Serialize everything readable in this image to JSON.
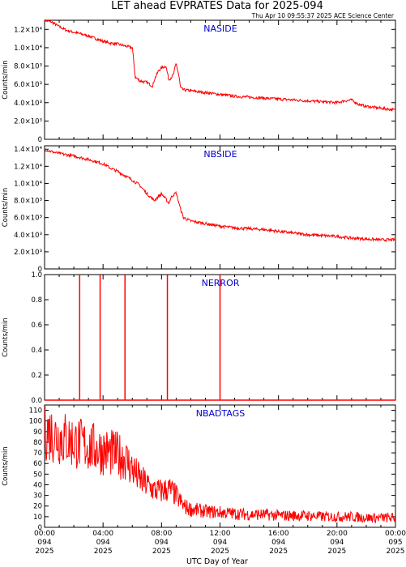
{
  "header": {
    "title": "LET ahead EVPRATES Data for 2025-094",
    "timestamp": "Thu Apr 10 09:55:37 2025 ACE Science Center"
  },
  "xaxis": {
    "label": "UTC Day of Year",
    "ticks": [
      {
        "hours": 0,
        "time": "00:00",
        "doy": "094",
        "year": "2025"
      },
      {
        "hours": 4,
        "time": "04:00",
        "doy": "094",
        "year": "2025"
      },
      {
        "hours": 8,
        "time": "08:00",
        "doy": "094",
        "year": "2025"
      },
      {
        "hours": 12,
        "time": "12:00",
        "doy": "094",
        "year": "2025"
      },
      {
        "hours": 16,
        "time": "16:00",
        "doy": "094",
        "year": "2025"
      },
      {
        "hours": 20,
        "time": "20:00",
        "doy": "094",
        "year": "2025"
      },
      {
        "hours": 24,
        "time": "00:00",
        "doy": "095",
        "year": "2025"
      }
    ]
  },
  "colors": {
    "series": "#ff0000",
    "panel_title": "#0000cc",
    "axis": "#000000"
  },
  "chart_data": [
    {
      "type": "line",
      "title": "NASIDE",
      "ylabel": "Counts/min",
      "ylim": [
        0,
        13000
      ],
      "xlim": [
        0,
        24
      ],
      "ytick_values": [
        0,
        2000,
        4000,
        6000,
        8000,
        10000,
        12000
      ],
      "ytick_labels": [
        "0",
        "2.0×10³",
        "4.0×10³",
        "6.0×10³",
        "8.0×10³",
        "1.0×10⁴",
        "1.2×10⁴"
      ],
      "series": [
        {
          "x": [
            0,
            0.5,
            1,
            1.5,
            2,
            2.5,
            3,
            3.5,
            4,
            4.5,
            5,
            5.5,
            6,
            6.1,
            6.2,
            6.5,
            7,
            7.4,
            7.5,
            7.8,
            8,
            8.3,
            8.5,
            8.8,
            9,
            9.2,
            9.3,
            9.5,
            10,
            11,
            12,
            13,
            14,
            15,
            16,
            17,
            18,
            19,
            20,
            20.5,
            21,
            21.5,
            22,
            23,
            24
          ],
          "y": [
            13000,
            12800,
            12300,
            11900,
            11700,
            11500,
            11300,
            11000,
            10700,
            10500,
            10400,
            10200,
            10000,
            8500,
            6800,
            6400,
            6200,
            5800,
            6500,
            7500,
            7800,
            8000,
            6500,
            7000,
            8300,
            6800,
            5600,
            5400,
            5300,
            5100,
            4900,
            4700,
            4600,
            4500,
            4400,
            4300,
            4200,
            4100,
            4000,
            4200,
            4300,
            3800,
            3600,
            3400,
            3200
          ]
        }
      ]
    },
    {
      "type": "line",
      "title": "NBSIDE",
      "ylabel": "Counts/min",
      "ylim": [
        0,
        14400
      ],
      "xlim": [
        0,
        24
      ],
      "ytick_values": [
        0,
        2000,
        4000,
        6000,
        8000,
        10000,
        12000,
        14000
      ],
      "ytick_labels": [
        "0",
        "2.0×10³",
        "4.0×10³",
        "6.0×10³",
        "8.0×10³",
        "1.0×10⁴",
        "1.2×10⁴",
        "1.4×10⁴"
      ],
      "series": [
        {
          "x": [
            0,
            0.5,
            1,
            2,
            3,
            4,
            4.5,
            5,
            5.5,
            6,
            6.5,
            7,
            7.5,
            8,
            8.5,
            8.7,
            9,
            9.3,
            9.5,
            10,
            11,
            12,
            13,
            14,
            15,
            16,
            17,
            18,
            19,
            20,
            21,
            22,
            23,
            24
          ],
          "y": [
            14000,
            13700,
            13500,
            13200,
            12800,
            12300,
            11800,
            11400,
            10900,
            10400,
            9800,
            8800,
            8000,
            8800,
            7700,
            8500,
            8900,
            7000,
            6000,
            5600,
            5300,
            5000,
            4800,
            4700,
            4600,
            4400,
            4200,
            4000,
            3900,
            3800,
            3600,
            3500,
            3400,
            3400
          ]
        }
      ]
    },
    {
      "type": "line",
      "title": "NERROR",
      "ylabel": "Counts/min",
      "ylim": [
        0,
        1
      ],
      "xlim": [
        0,
        24
      ],
      "ytick_values": [
        0,
        0.2,
        0.4,
        0.6,
        0.8,
        1.0
      ],
      "ytick_labels": [
        "0.0",
        "0.2",
        "0.4",
        "0.6",
        "0.8",
        "1.0"
      ],
      "spikes_x": [
        2.4,
        3.8,
        5.5,
        8.4,
        12.0
      ],
      "baseline": 0
    },
    {
      "type": "line",
      "title": "NBADTAGS",
      "ylabel": "Counts/min",
      "ylim": [
        0,
        115
      ],
      "xlim": [
        0,
        24
      ],
      "ytick_values": [
        0,
        10,
        20,
        30,
        40,
        50,
        60,
        70,
        80,
        90,
        100,
        110
      ],
      "ytick_labels": [
        "0",
        "10",
        "20",
        "30",
        "40",
        "50",
        "60",
        "70",
        "80",
        "90",
        "100",
        "110"
      ],
      "series": [
        {
          "x": [
            0,
            0.5,
            1,
            1.5,
            2,
            2.5,
            3,
            3.5,
            4,
            4.5,
            5,
            5.5,
            6,
            6.5,
            7,
            7.5,
            8,
            8.5,
            9,
            9.5,
            10,
            11,
            12,
            13,
            14,
            15,
            16,
            17,
            18,
            19,
            20,
            21,
            22,
            23,
            24
          ],
          "y": [
            92,
            88,
            85,
            83,
            80,
            78,
            76,
            74,
            72,
            70,
            68,
            65,
            55,
            45,
            40,
            35,
            34,
            36,
            30,
            20,
            17,
            15,
            14,
            13,
            12,
            12,
            11,
            11,
            11,
            10,
            10,
            10,
            9,
            9,
            9
          ]
        }
      ]
    }
  ]
}
